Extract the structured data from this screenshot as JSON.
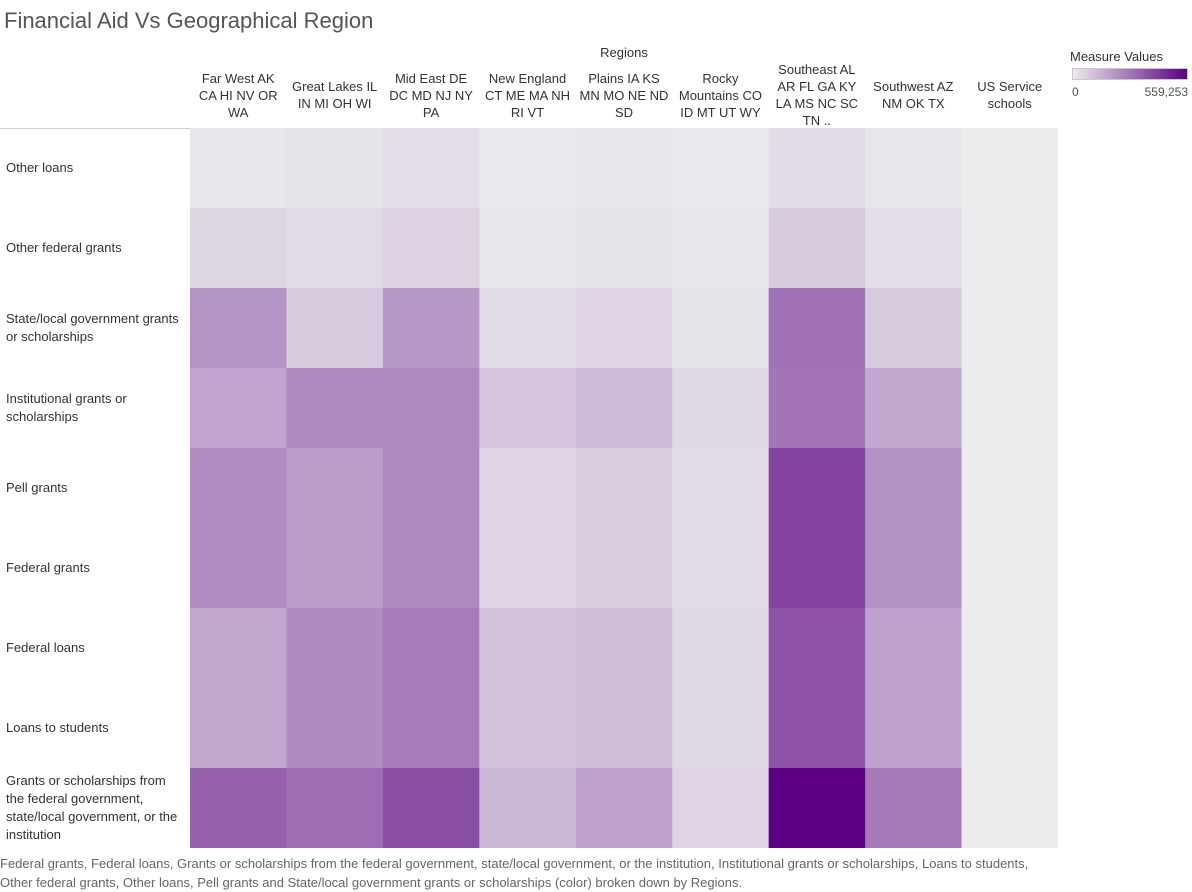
{
  "chart_data": {
    "type": "heatmap",
    "title": "Financial Aid Vs Geographical Region",
    "column_axis_label": "Regions",
    "columns": [
      "Far West AK CA HI NV OR WA",
      "Great Lakes IL IN MI OH WI",
      "Mid East DE DC MD NJ NY PA",
      "New England CT ME MA NH RI VT",
      "Plains IA KS MN MO NE ND SD",
      "Rocky Mountains CO ID MT UT WY",
      "Southeast AL AR FL GA KY LA MS NC SC TN ..",
      "Southwest AZ NM OK TX",
      "US Service schools"
    ],
    "rows": [
      "Other loans",
      "Other federal grants",
      "State/local government grants or scholarships",
      "Institutional grants or scholarships",
      "Pell grants",
      "Federal grants",
      "Federal loans",
      "Loans to students",
      "Grants or scholarships from the federal government, state/local government, or the institution"
    ],
    "values": [
      [
        12000,
        20000,
        30000,
        8000,
        10000,
        6000,
        35000,
        15000,
        0
      ],
      [
        50000,
        40000,
        60000,
        12000,
        18000,
        10000,
        80000,
        30000,
        0
      ],
      [
        210000,
        75000,
        200000,
        35000,
        55000,
        18000,
        290000,
        80000,
        0
      ],
      [
        170000,
        235000,
        235000,
        90000,
        115000,
        45000,
        280000,
        160000,
        0
      ],
      [
        225000,
        185000,
        235000,
        55000,
        70000,
        35000,
        400000,
        215000,
        0
      ],
      [
        225000,
        185000,
        235000,
        55000,
        70000,
        35000,
        400000,
        215000,
        0
      ],
      [
        165000,
        230000,
        265000,
        95000,
        110000,
        45000,
        365000,
        175000,
        0
      ],
      [
        165000,
        230000,
        265000,
        95000,
        110000,
        45000,
        365000,
        175000,
        0
      ],
      [
        330000,
        300000,
        375000,
        120000,
        175000,
        55000,
        559253,
        270000,
        0
      ]
    ],
    "color_range": [
      "#ecebee",
      "#5a0080"
    ],
    "legend": {
      "title": "Measure Values",
      "min_label": "0",
      "max_label": "559,253",
      "min": 0,
      "max": 559253,
      "placement": "top-right"
    },
    "caption": "Federal grants, Federal loans, Grants or scholarships from the federal government, state/local government, or the institution, Institutional grants or scholarships, Loans to students, Other federal grants, Other loans, Pell grants and State/local government grants or scholarships (color) broken down by Regions."
  }
}
